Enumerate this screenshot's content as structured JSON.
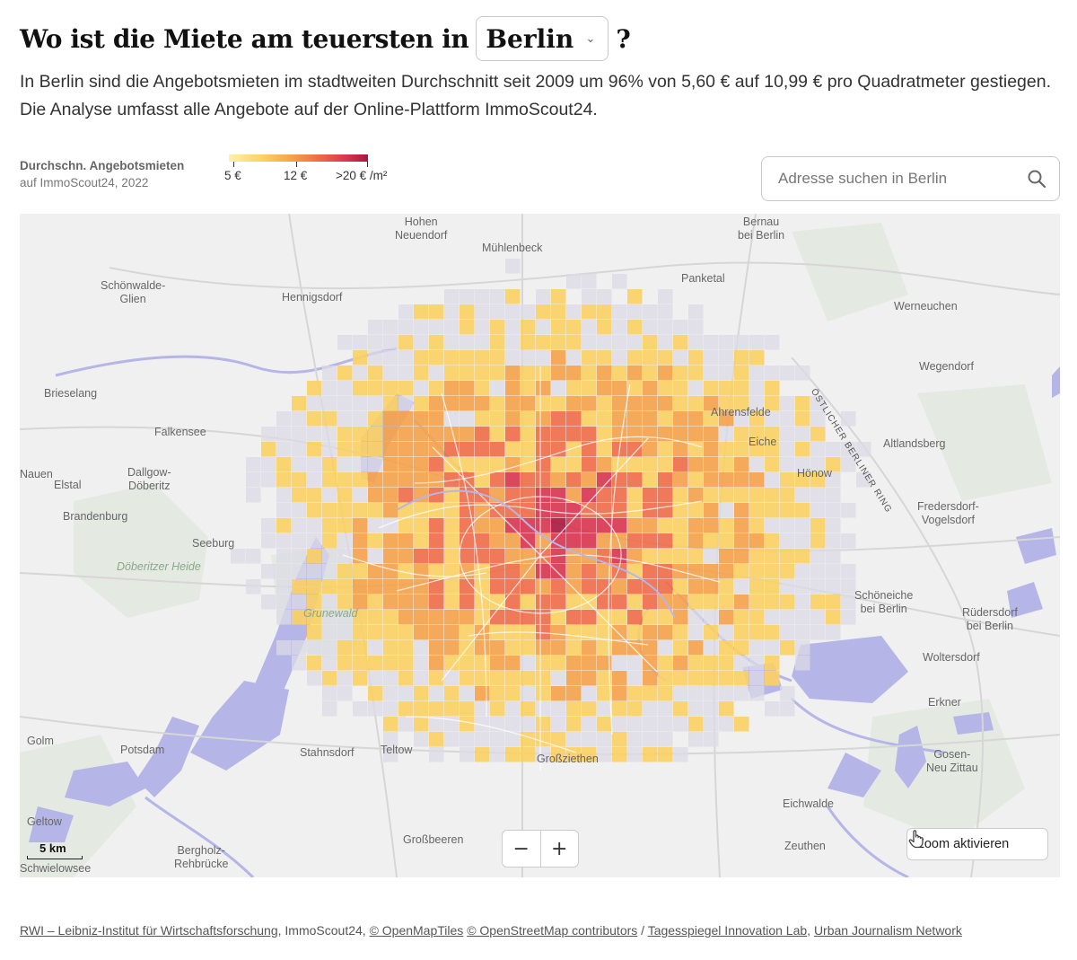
{
  "headline": {
    "prefix": "Wo ist die Miete am teuersten in",
    "city": "Berlin",
    "suffix": "?"
  },
  "lede": "In Berlin sind die Angebotsmieten im stadtweiten Durchschnitt seit 2009 um 96% von 5,60 € auf 10,99 € pro Quadratmeter gestiegen. Die Analyse umfasst alle Angebote auf der Online-Plattform ImmoScout24.",
  "legend": {
    "title": "Durchschn. Angebotsmieten",
    "subtitle": "auf ImmoScout24, 2022",
    "labels": [
      "5 €",
      "12 €",
      ">20 € /m²"
    ],
    "colors": [
      "#fff0a8",
      "#fbd063",
      "#f5a24a",
      "#ee6b47",
      "#d8344f",
      "#a9163f"
    ]
  },
  "search": {
    "placeholder": "Adresse suchen in Berlin",
    "icon": "search-icon"
  },
  "map": {
    "places": [
      {
        "name": "Hohen\nNeuendorf"
      },
      {
        "name": "Bernau\nbei Berlin"
      },
      {
        "name": "Mühlenbeck"
      },
      {
        "name": "Schönwalde-\nGlien"
      },
      {
        "name": "Hennigsdorf"
      },
      {
        "name": "Panketal"
      },
      {
        "name": "Werneuchen"
      },
      {
        "name": "Wegendorf"
      },
      {
        "name": "Brieselang"
      },
      {
        "name": "Falkensee"
      },
      {
        "name": "Ahrensfelde"
      },
      {
        "name": "Eiche"
      },
      {
        "name": "Altlandsberg"
      },
      {
        "name": "Dallgow-\nDöberitz"
      },
      {
        "name": "Elstal"
      },
      {
        "name": "Hönow"
      },
      {
        "name": "Brandenburg"
      },
      {
        "name": "Fredersdorf-\nVogelsdorf"
      },
      {
        "name": "Seeburg"
      },
      {
        "name": "Döberitzer Heide"
      },
      {
        "name": "Grunewald"
      },
      {
        "name": "Schöneiche\nbei Berlin"
      },
      {
        "name": "Rüdersdorf\nbei Berlin"
      },
      {
        "name": "Woltersdorf"
      },
      {
        "name": "Erkner"
      },
      {
        "name": "Golm"
      },
      {
        "name": "Potsdam"
      },
      {
        "name": "Teltow"
      },
      {
        "name": "Großziethen"
      },
      {
        "name": "Stahnsdorf"
      },
      {
        "name": "Gosen-\nNeu Zittau"
      },
      {
        "name": "Eichwalde"
      },
      {
        "name": "Geltow"
      },
      {
        "name": "Großbeeren"
      },
      {
        "name": "Bergholz-\nRehbrücke"
      },
      {
        "name": "Zeuthen"
      },
      {
        "name": "Schwielowsee"
      },
      {
        "name": "ÖSTLICHER BERLINER RING"
      },
      {
        "name": "Nauen"
      }
    ],
    "scale_label": "5 km",
    "zoom_in": "+",
    "zoom_out": "−",
    "zoom_activate": "Zoom aktivieren"
  },
  "credits": {
    "rwi": "RWI – Leibniz-Institut für Wirtschaftsforschung",
    "immo": ", ImmoScout24, ",
    "omt": "© OpenMapTiles",
    "osm": "© OpenStreetMap contributors",
    "slash": " / ",
    "tsp": "Tagesspiegel Innovation Lab",
    "comma": ", ",
    "ujn": "Urban Journalism Network"
  }
}
